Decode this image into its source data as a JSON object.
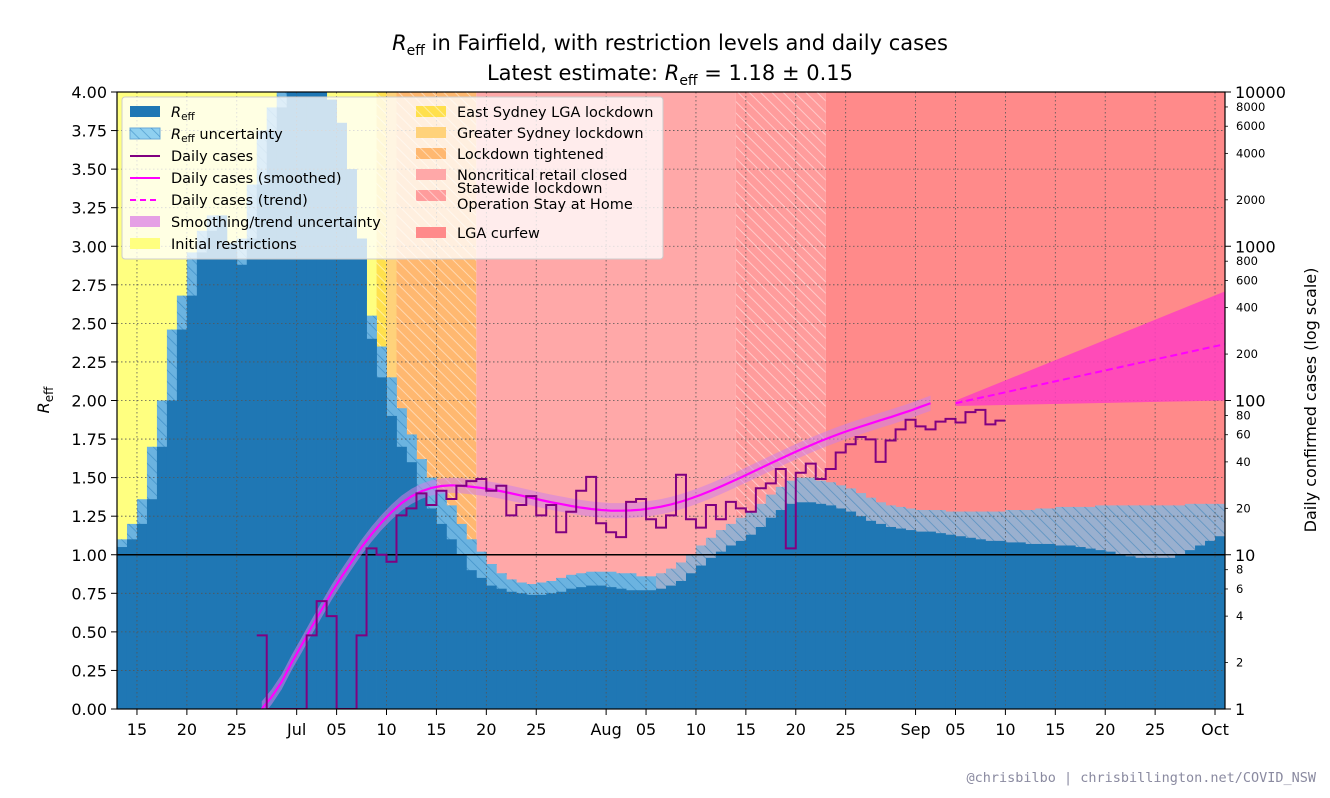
{
  "chart_data": {
    "type": "bar",
    "title_line1_prefix": "R",
    "title_line1_sub": "eff",
    "title_line1_rest": " in Fairfield, with restriction levels and daily cases",
    "title_line2_prefix": "Latest estimate: ",
    "title_line2_r": "R",
    "title_line2_sub": "eff",
    "title_line2_value": " = 1.18 ± 0.15",
    "ylabel_left": "R",
    "ylabel_left_sub": "eff",
    "ylabel_right": "Daily confirmed cases (log scale)",
    "ylim_left": [
      0,
      4
    ],
    "ylim_right_log": [
      1,
      10000
    ],
    "x_axis_start": "2021-06-13",
    "x_axis_end": "2021-10-02",
    "x_ticks": [
      {
        "date": "2021-06-15",
        "label": "15"
      },
      {
        "date": "2021-06-20",
        "label": "20"
      },
      {
        "date": "2021-06-25",
        "label": "25"
      },
      {
        "date": "2021-07-01",
        "label": "Jul"
      },
      {
        "date": "2021-07-05",
        "label": "05"
      },
      {
        "date": "2021-07-10",
        "label": "10"
      },
      {
        "date": "2021-07-15",
        "label": "15"
      },
      {
        "date": "2021-07-20",
        "label": "20"
      },
      {
        "date": "2021-07-25",
        "label": "25"
      },
      {
        "date": "2021-08-01",
        "label": "Aug"
      },
      {
        "date": "2021-08-05",
        "label": "05"
      },
      {
        "date": "2021-08-10",
        "label": "10"
      },
      {
        "date": "2021-08-15",
        "label": "15"
      },
      {
        "date": "2021-08-20",
        "label": "20"
      },
      {
        "date": "2021-08-25",
        "label": "25"
      },
      {
        "date": "2021-09-01",
        "label": "Sep"
      },
      {
        "date": "2021-09-05",
        "label": "05"
      },
      {
        "date": "2021-09-10",
        "label": "10"
      },
      {
        "date": "2021-09-15",
        "label": "15"
      },
      {
        "date": "2021-09-20",
        "label": "20"
      },
      {
        "date": "2021-09-25",
        "label": "25"
      },
      {
        "date": "2021-10-01",
        "label": "Oct"
      }
    ],
    "y_ticks_left": [
      "0.00",
      "0.25",
      "0.50",
      "0.75",
      "1.00",
      "1.25",
      "1.50",
      "1.75",
      "2.00",
      "2.25",
      "2.50",
      "2.75",
      "3.00",
      "3.25",
      "3.50",
      "3.75",
      "4.00"
    ],
    "y_ticks_right_major": [
      {
        "value": 1,
        "label": "1"
      },
      {
        "value": 10,
        "label": "10"
      },
      {
        "value": 100,
        "label": "100"
      },
      {
        "value": 1000,
        "label": "1000"
      },
      {
        "value": 10000,
        "label": "10000"
      }
    ],
    "y_ticks_right_minor": [
      {
        "value": 2,
        "label": "2"
      },
      {
        "value": 4,
        "label": "4"
      },
      {
        "value": 6,
        "label": "6"
      },
      {
        "value": 8,
        "label": "8"
      },
      {
        "value": 20,
        "label": "20"
      },
      {
        "value": 40,
        "label": "40"
      },
      {
        "value": 60,
        "label": "60"
      },
      {
        "value": 80,
        "label": "80"
      },
      {
        "value": 200,
        "label": "200"
      },
      {
        "value": 400,
        "label": "400"
      },
      {
        "value": 600,
        "label": "600"
      },
      {
        "value": 800,
        "label": "800"
      },
      {
        "value": 2000,
        "label": "2000"
      },
      {
        "value": 4000,
        "label": "4000"
      },
      {
        "value": 6000,
        "label": "6000"
      },
      {
        "value": 8000,
        "label": "8000"
      }
    ],
    "reference_line": 1.0,
    "restriction_periods": [
      {
        "name": "Initial restrictions",
        "start": "2021-06-13",
        "end": "2021-07-09",
        "color": "#ffff80"
      },
      {
        "name": "East Sydney LGA lockdown",
        "start": "2021-07-09",
        "end": "2021-07-10",
        "color": "#ffe04d",
        "hatch": true
      },
      {
        "name": "Greater Sydney lockdown",
        "start": "2021-07-10",
        "end": "2021-07-11",
        "color": "#ffd27a"
      },
      {
        "name": "Lockdown tightened",
        "start": "2021-07-11",
        "end": "2021-07-19",
        "color": "#ffb870",
        "hatch": true
      },
      {
        "name": "Noncritical retail closed",
        "start": "2021-07-19",
        "end": "2021-08-14",
        "color": "#ffa8a8"
      },
      {
        "name": "Statewide lockdown Operation Stay at Home",
        "start": "2021-08-14",
        "end": "2021-08-23",
        "color": "#ff9c9c",
        "hatch": true
      },
      {
        "name": "LGA curfew",
        "start": "2021-08-23",
        "end": "2021-10-02",
        "color": "#ff8a8a"
      }
    ],
    "reff_start": "2021-06-13",
    "reff": [
      1.05,
      1.1,
      1.2,
      1.36,
      1.7,
      2.0,
      2.46,
      2.68,
      2.96,
      3.1,
      3.2,
      3.02,
      2.88,
      3.05,
      3.4,
      3.75,
      3.9,
      4.0,
      4.0,
      4.0,
      4.0,
      3.95,
      3.8,
      3.5,
      3.05,
      2.4,
      2.15,
      1.9,
      1.7,
      1.6,
      1.4,
      1.3,
      1.2,
      1.1,
      1.0,
      0.9,
      0.85,
      0.8,
      0.78,
      0.76,
      0.75,
      0.74,
      0.74,
      0.75,
      0.76,
      0.78,
      0.79,
      0.8,
      0.8,
      0.79,
      0.78,
      0.77,
      0.77,
      0.77,
      0.78,
      0.8,
      0.83,
      0.88,
      0.93,
      0.98,
      1.02,
      1.06,
      1.09,
      1.13,
      1.18,
      1.24,
      1.29,
      1.33,
      1.34,
      1.34,
      1.33,
      1.32,
      1.3,
      1.28,
      1.25,
      1.22,
      1.2,
      1.18,
      1.17,
      1.16,
      1.15,
      1.15,
      1.14,
      1.13,
      1.12,
      1.11,
      1.1,
      1.09,
      1.09,
      1.08,
      1.08,
      1.07,
      1.07,
      1.07,
      1.06,
      1.06,
      1.05,
      1.04,
      1.03,
      1.02,
      1.0,
      0.99,
      0.98,
      0.98,
      0.98,
      0.98,
      1.0,
      1.03,
      1.06,
      1.09,
      1.12,
      1.15,
      1.17,
      1.18
    ],
    "reff_upper": [
      1.1,
      1.2,
      1.36,
      1.7,
      2.0,
      2.46,
      2.68,
      2.96,
      3.1,
      3.2,
      3.02,
      2.88,
      3.05,
      3.4,
      3.75,
      3.9,
      4.0,
      4.0,
      4.0,
      4.0,
      3.95,
      3.8,
      3.5,
      3.05,
      2.65,
      2.55,
      2.35,
      2.15,
      1.95,
      1.78,
      1.62,
      1.5,
      1.42,
      1.32,
      1.2,
      1.1,
      1.02,
      0.94,
      0.88,
      0.84,
      0.82,
      0.81,
      0.82,
      0.83,
      0.85,
      0.87,
      0.88,
      0.89,
      0.89,
      0.89,
      0.88,
      0.88,
      0.86,
      0.86,
      0.88,
      0.91,
      0.95,
      1.0,
      1.06,
      1.11,
      1.16,
      1.2,
      1.24,
      1.28,
      1.33,
      1.39,
      1.44,
      1.48,
      1.5,
      1.5,
      1.48,
      1.47,
      1.45,
      1.43,
      1.4,
      1.37,
      1.34,
      1.32,
      1.31,
      1.3,
      1.29,
      1.29,
      1.29,
      1.28,
      1.28,
      1.28,
      1.28,
      1.28,
      1.28,
      1.29,
      1.29,
      1.29,
      1.3,
      1.3,
      1.31,
      1.31,
      1.31,
      1.31,
      1.32,
      1.32,
      1.32,
      1.32,
      1.32,
      1.32,
      1.32,
      1.32,
      1.32,
      1.33,
      1.33,
      1.33,
      1.33,
      1.33,
      1.33,
      1.33
    ],
    "daily_cases_start": "2021-06-27",
    "daily_cases": [
      3,
      1,
      1,
      1,
      1,
      3,
      5,
      4,
      1,
      1,
      3,
      11,
      10,
      9,
      18,
      20,
      25,
      21,
      26,
      23,
      28,
      30,
      31,
      26,
      28,
      18,
      21,
      24,
      18,
      21,
      14,
      19,
      26,
      32,
      16,
      14,
      13,
      22,
      23,
      17,
      15,
      18,
      33,
      17,
      15,
      21,
      17,
      22,
      20,
      19,
      27,
      29,
      36,
      11,
      34,
      39,
      31,
      36,
      46,
      52,
      58,
      56,
      40,
      55,
      65,
      75,
      68,
      65,
      73,
      76,
      72,
      84,
      87,
      70,
      74
    ],
    "smoothed_start": "2021-06-27",
    "smoothed_cases": [
      1.0,
      1.2,
      1.5,
      2.0,
      2.6,
      3.4,
      4.4,
      5.7,
      7.2,
      9.0,
      11.2,
      13.6,
      16.2,
      18.9,
      21.6,
      23.9,
      25.8,
      27.1,
      27.9,
      28.2,
      28.0,
      27.6,
      27.1,
      26.5,
      25.8,
      25.0,
      24.2,
      23.4,
      22.6,
      21.9,
      21.3,
      20.7,
      20.2,
      19.8,
      19.5,
      19.3,
      19.3,
      19.4,
      19.6,
      20.0,
      20.5,
      21.2,
      22.1,
      23.2,
      24.5,
      26.0,
      27.7,
      29.6,
      31.7,
      34.0,
      36.5,
      39.2,
      42.0,
      45.0,
      48.1,
      51.3,
      54.6,
      57.9,
      61.2,
      64.5,
      67.7,
      71.0,
      74.5,
      78.0,
      82.0,
      86.0,
      91.0,
      96.0
    ],
    "trend_start": "2021-09-05",
    "trend_end": "2021-10-02",
    "trend_start_value": 96,
    "trend_end_value": 232,
    "trend_upper_end": 510,
    "trend_lower_end": 100,
    "legend": [
      {
        "label_prefix": "R",
        "label_sub": "eff",
        "label_rest": "",
        "style": "patch-solid",
        "color": "#1f77b4"
      },
      {
        "label_prefix": "R",
        "label_sub": "eff",
        "label_rest": " uncertainty",
        "style": "patch-hatch",
        "color": "#8fd0f0"
      },
      {
        "label_prefix": "",
        "label_sub": "",
        "label_rest": "Daily cases",
        "style": "line",
        "color": "#800080"
      },
      {
        "label_prefix": "",
        "label_sub": "",
        "label_rest": "Daily cases (smoothed)",
        "style": "line",
        "color": "#ff00ff"
      },
      {
        "label_prefix": "",
        "label_sub": "",
        "label_rest": "Daily cases (trend)",
        "style": "dash",
        "color": "#ff00ff"
      },
      {
        "label_prefix": "",
        "label_sub": "",
        "label_rest": "Smoothing/trend uncertainty",
        "style": "patch-solid",
        "color": "#e5a0e5"
      },
      {
        "label_prefix": "",
        "label_sub": "",
        "label_rest": "Initial restrictions",
        "style": "patch-solid",
        "color": "#ffff80"
      }
    ],
    "legend_right": [
      {
        "label": "East Sydney LGA lockdown",
        "style": "patch-hatch",
        "color": "#ffe04d"
      },
      {
        "label": "Greater Sydney lockdown",
        "style": "patch-solid",
        "color": "#ffd27a"
      },
      {
        "label": "Lockdown tightened",
        "style": "patch-hatch",
        "color": "#ffb870"
      },
      {
        "label": "Noncritical retail closed",
        "style": "patch-solid",
        "color": "#ffa8a8"
      },
      {
        "label": "Statewide lockdown",
        "label2": "Operation Stay at Home",
        "style": "patch-hatch",
        "color": "#ff9c9c"
      },
      {
        "label": "LGA curfew",
        "style": "patch-solid",
        "color": "#ff8a8a"
      }
    ],
    "legend_placement": "upper-left",
    "grid": true
  },
  "credit": "@chrisbilbo | chrisbillington.net/COVID_NSW"
}
